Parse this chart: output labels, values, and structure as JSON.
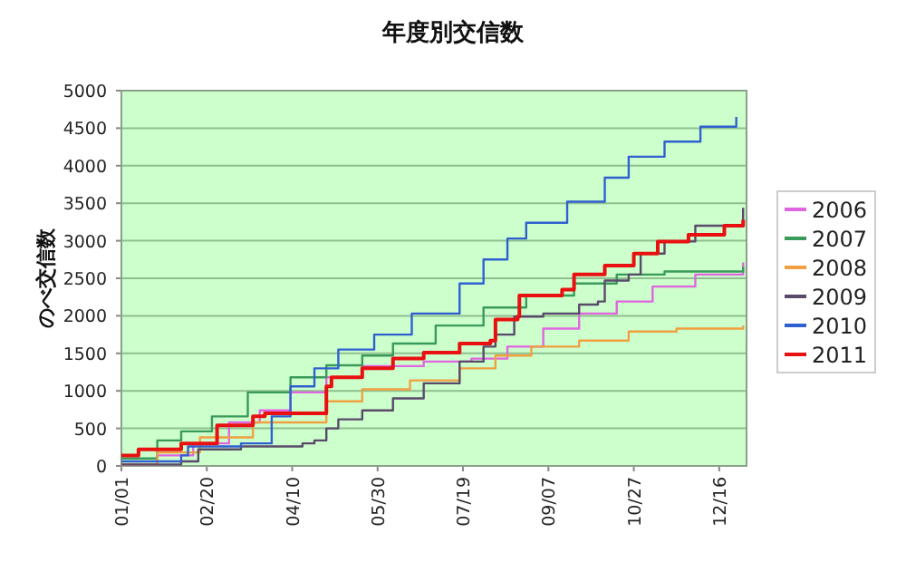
{
  "chart_data": {
    "type": "step",
    "title": "年度別交信数",
    "ylabel": "のべ交信数",
    "xlim": [
      "--01-01",
      "--12-31"
    ],
    "ylim": [
      0,
      5000
    ],
    "xticks": [
      {
        "value": "--01-01",
        "label": "01/01"
      },
      {
        "value": "--02-20",
        "label": "02/20"
      },
      {
        "value": "--04-10",
        "label": "04/10"
      },
      {
        "value": "--05-30",
        "label": "05/30"
      },
      {
        "value": "--07-19",
        "label": "07/19"
      },
      {
        "value": "--09-07",
        "label": "09/07"
      },
      {
        "value": "--10-27",
        "label": "10/27"
      },
      {
        "value": "--12-16",
        "label": "12/16"
      }
    ],
    "yticks": [
      0,
      500,
      1000,
      1500,
      2000,
      2500,
      3000,
      3500,
      4000,
      4500,
      5000
    ],
    "grid": "y",
    "legend": "right",
    "line_style": "solid",
    "marker": "none",
    "series": [
      {
        "name": "2006",
        "color": "#e066e0",
        "x": [
          "--01-01",
          "--01-22",
          "--02-12",
          "--03-04",
          "--03-22",
          "--04-09",
          "--04-30",
          "--05-21",
          "--06-26",
          "--07-24",
          "--08-14",
          "--09-04",
          "--09-25",
          "--10-17",
          "--11-07",
          "--12-02",
          "--12-30"
        ],
        "values": [
          20,
          140,
          300,
          580,
          740,
          980,
          1180,
          1330,
          1390,
          1430,
          1590,
          1830,
          2030,
          2190,
          2390,
          2550,
          2710
        ]
      },
      {
        "name": "2007",
        "color": "#3a9a5a",
        "x": [
          "--01-01",
          "--01-22",
          "--02-05",
          "--02-23",
          "--03-15",
          "--04-09",
          "--04-30",
          "--05-21",
          "--06-08",
          "--07-03",
          "--07-31",
          "--08-25",
          "--09-22",
          "--10-17",
          "--11-14",
          "--12-30"
        ],
        "values": [
          100,
          340,
          460,
          660,
          980,
          1180,
          1340,
          1470,
          1630,
          1870,
          2110,
          2270,
          2430,
          2550,
          2590,
          2650
        ]
      },
      {
        "name": "2008",
        "color": "#f0a040",
        "x": [
          "--01-01",
          "--01-22",
          "--02-16",
          "--03-18",
          "--04-30",
          "--05-21",
          "--06-18",
          "--07-17",
          "--08-07",
          "--08-28",
          "--09-25",
          "--10-24",
          "--11-21",
          "--12-30"
        ],
        "values": [
          20,
          180,
          380,
          580,
          860,
          1020,
          1140,
          1300,
          1470,
          1590,
          1670,
          1790,
          1830,
          1870
        ]
      },
      {
        "name": "2009",
        "color": "#5a4a6a",
        "x": [
          "--01-01",
          "--02-05",
          "--02-15",
          "--03-11",
          "--04-16",
          "--04-23",
          "--04-30",
          "--05-07",
          "--05-21",
          "--06-08",
          "--06-26",
          "--07-17",
          "--07-31",
          "--08-07",
          "--08-18",
          "--09-04",
          "--09-25",
          "--10-06",
          "--10-10",
          "--10-24",
          "--10-31",
          "--11-14",
          "--12-02",
          "--12-30"
        ],
        "values": [
          20,
          60,
          220,
          260,
          300,
          340,
          500,
          620,
          740,
          900,
          1100,
          1390,
          1590,
          1750,
          1990,
          2030,
          2150,
          2190,
          2470,
          2550,
          2830,
          2990,
          3200,
          3440
        ]
      },
      {
        "name": "2010",
        "color": "#3060d0",
        "x": [
          "--01-01",
          "--02-05",
          "--02-09",
          "--03-11",
          "--03-29",
          "--04-09",
          "--04-23",
          "--05-07",
          "--05-28",
          "--06-19",
          "--07-17",
          "--07-31",
          "--08-14",
          "--08-25",
          "--09-18",
          "--10-10",
          "--10-24",
          "--11-14",
          "--12-05",
          "--12-26"
        ],
        "values": [
          60,
          140,
          260,
          300,
          660,
          1060,
          1300,
          1550,
          1750,
          2030,
          2430,
          2750,
          3030,
          3240,
          3520,
          3840,
          4120,
          4320,
          4520,
          4650
        ]
      },
      {
        "name": "2011",
        "color": "#e81010",
        "x": [
          "--01-01",
          "--01-11",
          "--02-05",
          "--02-26",
          "--03-18",
          "--03-25",
          "--04-28",
          "--04-30",
          "--05-03",
          "--05-21",
          "--06-08",
          "--06-26",
          "--07-17",
          "--08-04",
          "--08-07",
          "--08-20",
          "--08-21",
          "--09-15",
          "--09-22",
          "--10-10",
          "--10-27",
          "--11-10",
          "--11-28",
          "--12-19",
          "--12-30"
        ],
        "values": [
          140,
          220,
          300,
          540,
          660,
          700,
          700,
          1060,
          1180,
          1300,
          1430,
          1510,
          1630,
          1670,
          1950,
          1990,
          2270,
          2350,
          2550,
          2670,
          2830,
          2990,
          3080,
          3200,
          3280
        ]
      }
    ]
  }
}
